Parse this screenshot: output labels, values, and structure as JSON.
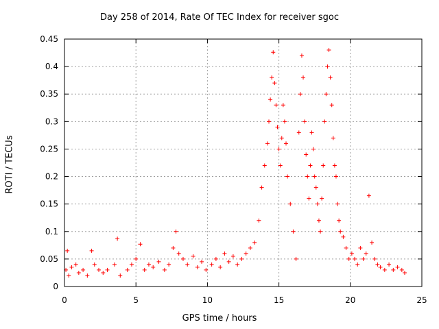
{
  "chart_data": {
    "type": "scatter",
    "title": "Day 258 of 2014, Rate Of TEC Index for receiver sgoc",
    "xlabel": "GPS time / hours",
    "ylabel": "ROTI / TECUs",
    "xlim": [
      0,
      25
    ],
    "ylim": [
      0,
      0.45
    ],
    "xticks": [
      "0",
      "5",
      "10",
      "15",
      "20",
      "25"
    ],
    "yticks": [
      "0",
      "0.05",
      "0.1",
      "0.15",
      "0.2",
      "0.25",
      "0.3",
      "0.35",
      "0.4",
      "0.45"
    ],
    "grid": true,
    "marker": "+",
    "color": "#ff0000",
    "series": [
      {
        "name": "ROTI",
        "x": [
          0.1,
          0.2,
          0.3,
          0.5,
          0.8,
          1.0,
          1.3,
          1.6,
          1.9,
          2.1,
          2.4,
          2.7,
          3.0,
          3.5,
          3.7,
          3.9,
          4.4,
          4.7,
          5.0,
          5.3,
          5.6,
          5.9,
          6.2,
          6.6,
          7.0,
          7.3,
          7.6,
          7.8,
          8.0,
          8.3,
          8.6,
          9.0,
          9.3,
          9.6,
          9.9,
          10.3,
          10.6,
          10.9,
          11.2,
          11.5,
          11.8,
          12.1,
          12.4,
          12.7,
          13.0,
          13.3,
          13.6,
          13.8,
          14.0,
          14.2,
          14.3,
          14.4,
          14.5,
          14.6,
          14.7,
          14.8,
          14.9,
          15.0,
          15.1,
          15.2,
          15.3,
          15.4,
          15.5,
          15.6,
          15.8,
          16.0,
          16.2,
          16.4,
          16.5,
          16.6,
          16.7,
          16.8,
          16.9,
          17.0,
          17.1,
          17.2,
          17.3,
          17.4,
          17.5,
          17.6,
          17.7,
          17.8,
          17.9,
          18.0,
          18.1,
          18.2,
          18.3,
          18.4,
          18.5,
          18.6,
          18.7,
          18.8,
          18.9,
          19.0,
          19.1,
          19.2,
          19.3,
          19.5,
          19.7,
          19.9,
          20.1,
          20.3,
          20.5,
          20.7,
          20.9,
          21.1,
          21.3,
          21.5,
          21.7,
          21.9,
          22.1,
          22.4,
          22.7,
          23.0,
          23.3,
          23.6,
          23.8
        ],
        "y": [
          0.03,
          0.065,
          0.02,
          0.035,
          0.04,
          0.025,
          0.03,
          0.02,
          0.065,
          0.04,
          0.03,
          0.025,
          0.03,
          0.04,
          0.087,
          0.02,
          0.03,
          0.04,
          0.05,
          0.077,
          0.03,
          0.04,
          0.035,
          0.045,
          0.03,
          0.04,
          0.07,
          0.1,
          0.06,
          0.05,
          0.04,
          0.055,
          0.035,
          0.045,
          0.03,
          0.04,
          0.05,
          0.035,
          0.06,
          0.045,
          0.055,
          0.04,
          0.05,
          0.06,
          0.07,
          0.08,
          0.12,
          0.18,
          0.22,
          0.26,
          0.3,
          0.34,
          0.38,
          0.426,
          0.37,
          0.33,
          0.29,
          0.25,
          0.22,
          0.27,
          0.33,
          0.3,
          0.26,
          0.2,
          0.15,
          0.1,
          0.05,
          0.28,
          0.35,
          0.42,
          0.38,
          0.3,
          0.24,
          0.2,
          0.16,
          0.22,
          0.28,
          0.25,
          0.2,
          0.18,
          0.15,
          0.12,
          0.1,
          0.16,
          0.22,
          0.3,
          0.35,
          0.4,
          0.43,
          0.38,
          0.33,
          0.27,
          0.22,
          0.2,
          0.15,
          0.12,
          0.1,
          0.09,
          0.07,
          0.05,
          0.06,
          0.05,
          0.04,
          0.07,
          0.05,
          0.06,
          0.165,
          0.08,
          0.05,
          0.04,
          0.035,
          0.03,
          0.04,
          0.03,
          0.035,
          0.03,
          0.025
        ]
      }
    ]
  }
}
